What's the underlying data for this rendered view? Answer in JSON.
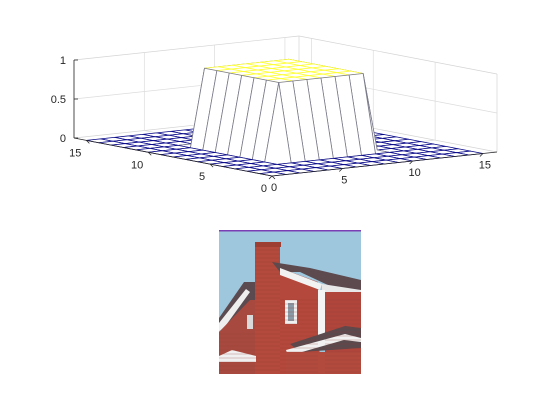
{
  "chart_data": [
    {
      "type": "mesh",
      "title": "",
      "xlabel": "",
      "ylabel": "",
      "zlabel": "",
      "x_ticks": [
        "0",
        "5",
        "10",
        "15"
      ],
      "y_ticks": [
        "0",
        "5",
        "10",
        "15"
      ],
      "z_ticks": [
        "0",
        "0.5",
        "1"
      ],
      "xlim": [
        0,
        16
      ],
      "ylim": [
        0,
        16
      ],
      "zlim": [
        0,
        1
      ],
      "grid": true,
      "grid_size": 16,
      "plateau": {
        "value": 1,
        "x_range": [
          5,
          11
        ],
        "y_range": [
          5,
          11
        ]
      },
      "base_value": 0,
      "colors": {
        "low": "#0a0a8a",
        "high": "#ffff33"
      }
    }
  ],
  "image_panel": {
    "label": "house photo (grayscale-filtered output)",
    "colors": {
      "sky": "#9cc6dc",
      "brick": "#b5473c",
      "roof": "#5a4a4e",
      "trim": "#f2f2f2"
    }
  }
}
